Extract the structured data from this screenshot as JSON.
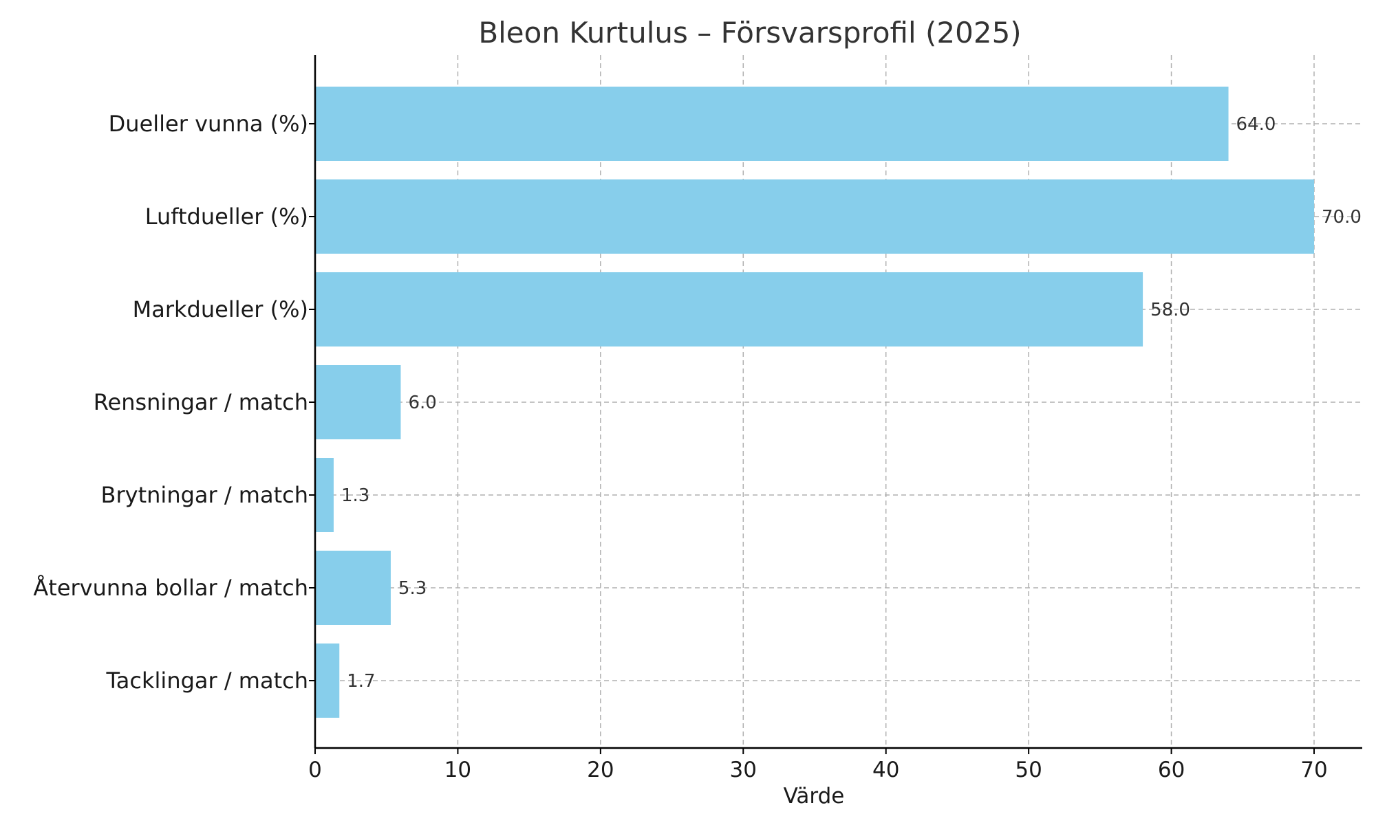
{
  "chart_data": {
    "type": "bar",
    "orientation": "horizontal",
    "title": "Bleon Kurtulus – Försvarsprofil (2025)",
    "xlabel": "Värde",
    "ylabel": "",
    "categories": [
      "Dueller vunna (%)",
      "Luftdueller (%)",
      "Markdueller (%)",
      "Rensningar / match",
      "Brytningar / match",
      "Återvunna bollar / match",
      "Tacklingar / match"
    ],
    "values": [
      64.0,
      70.0,
      58.0,
      6.0,
      1.3,
      5.3,
      1.7
    ],
    "value_labels": [
      "64.0",
      "70.0",
      "58.0",
      "6.0",
      "1.3",
      "5.3",
      "1.7"
    ],
    "xlim": [
      0,
      73.5
    ],
    "xticks": [
      0,
      10,
      20,
      30,
      40,
      50,
      60,
      70
    ],
    "grid": true,
    "bar_color": "#87ceeb"
  }
}
